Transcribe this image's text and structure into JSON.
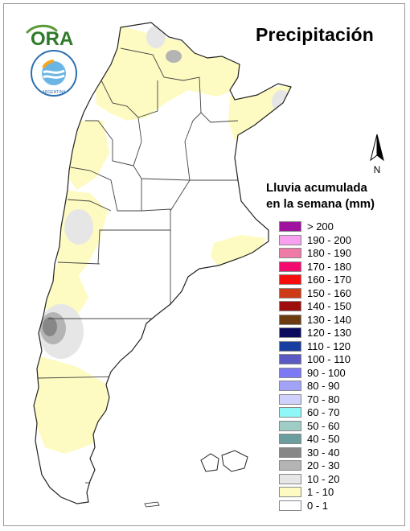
{
  "header": {
    "title": "Precipitación"
  },
  "logos": {
    "ora": {
      "text": "ORA"
    },
    "smn": {
      "ring_text": "SERVICIO METEOROLOGICO NACIONAL",
      "country": "ARGENTINA"
    }
  },
  "north_arrow": {
    "label": "N",
    "icon": "north-arrow-icon"
  },
  "legend": {
    "title_line1": "Lluvia acumulada",
    "title_line2": "en la semana (mm)",
    "items": [
      {
        "label": "> 200",
        "color": "#a0139e"
      },
      {
        "label": "190 - 200",
        "color": "#f7a1ee"
      },
      {
        "label": "180 - 190",
        "color": "#ee7aa6"
      },
      {
        "label": "170 - 180",
        "color": "#f20a6e"
      },
      {
        "label": "160 - 170",
        "color": "#f50d0d"
      },
      {
        "label": "150 - 160",
        "color": "#cd3a16"
      },
      {
        "label": "140 - 150",
        "color": "#9e0e0e"
      },
      {
        "label": "130 - 140",
        "color": "#6d3b10"
      },
      {
        "label": "120 - 130",
        "color": "#0b0b5e"
      },
      {
        "label": "110 - 120",
        "color": "#173ea0"
      },
      {
        "label": "100 - 110",
        "color": "#5a5ac2"
      },
      {
        "label": "90 - 100",
        "color": "#7b79f4"
      },
      {
        "label": "80 - 90",
        "color": "#a2a2f6"
      },
      {
        "label": "70 - 80",
        "color": "#cfd0fb"
      },
      {
        "label": "60 - 70",
        "color": "#8ff7f7"
      },
      {
        "label": "50 - 60",
        "color": "#9ecdc6"
      },
      {
        "label": "40 - 50",
        "color": "#6c9ea0"
      },
      {
        "label": "30 - 40",
        "color": "#878787"
      },
      {
        "label": "20 - 30",
        "color": "#b4b4b4"
      },
      {
        "label": "10 - 20",
        "color": "#e6e6e6"
      },
      {
        "label": "1 - 10",
        "color": "#fdfbc1"
      },
      {
        "label": "0 - 1",
        "color": "#ffffff"
      }
    ]
  },
  "map": {
    "base_color": "#ffffff",
    "boundary_color": "#333333",
    "zones": {
      "light_rain": "#fdfbc1",
      "moderate": "#e6e6e6",
      "higher": "#b4b4b4",
      "highest": "#878787"
    }
  }
}
